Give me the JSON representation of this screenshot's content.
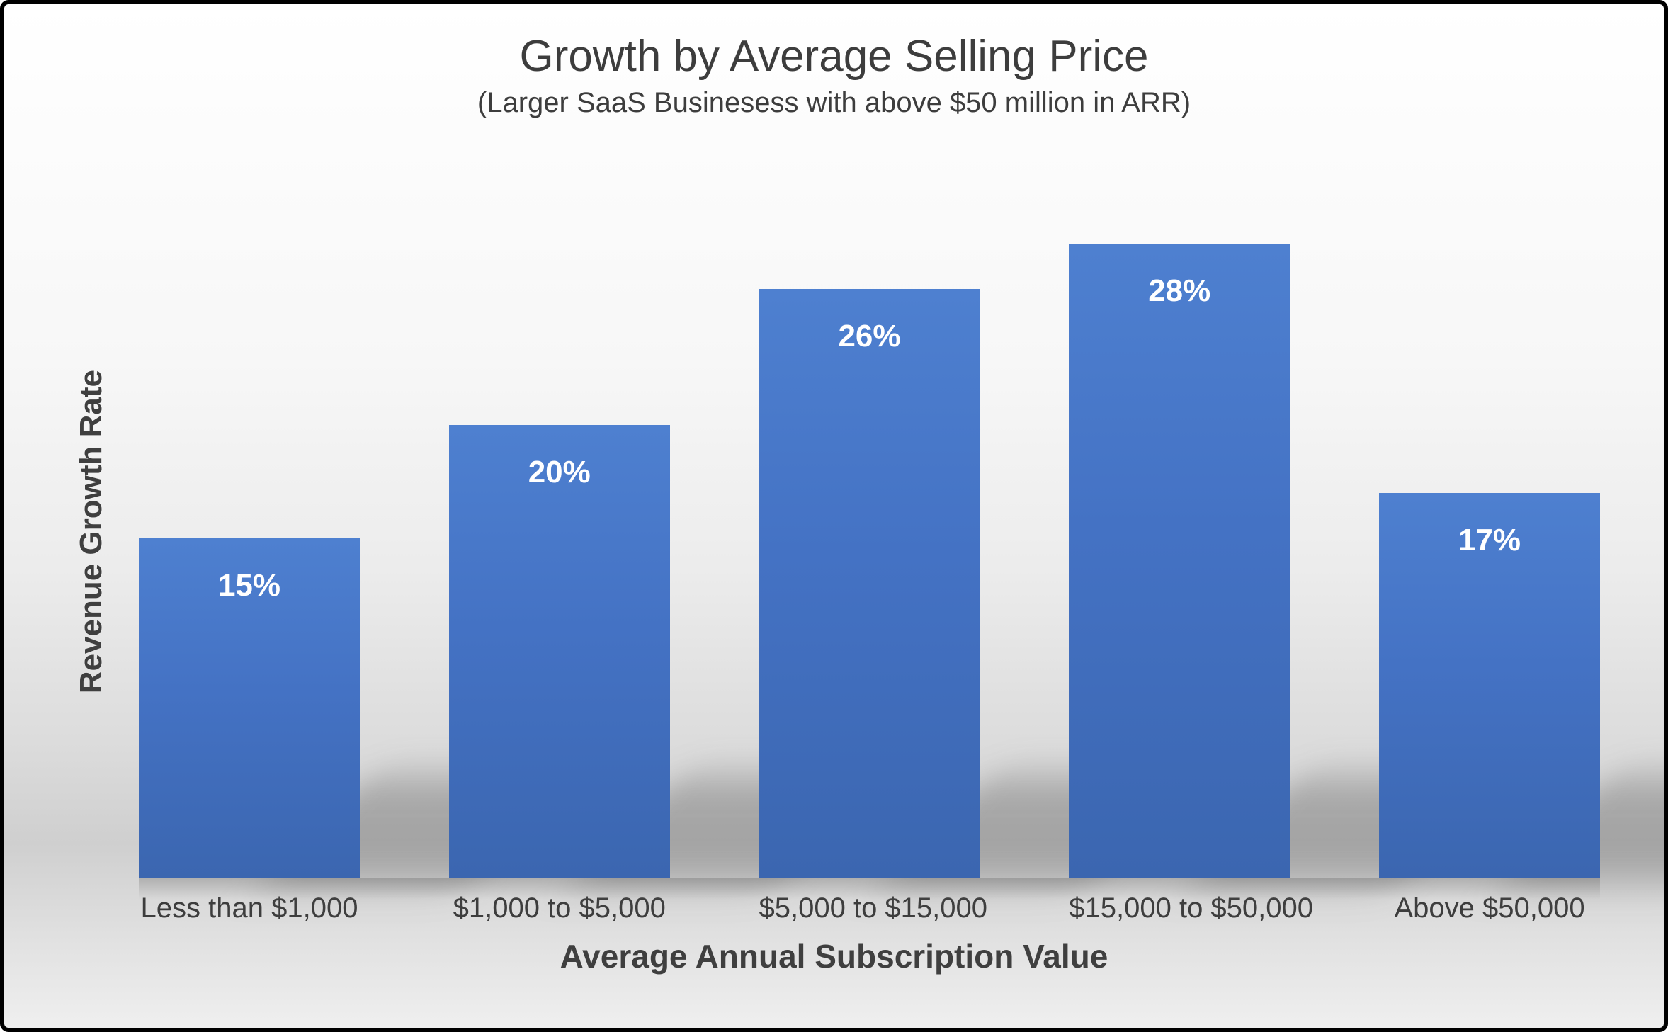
{
  "title": "Growth by Average Selling Price",
  "subtitle": "(Larger SaaS Businesess with above $50 million in ARR)",
  "colors": {
    "bar_top": "#4e80d0",
    "bar_mid": "#4472c4",
    "bar_bottom": "#3b66b0",
    "title_text": "#3d3d3d",
    "data_label_text": "#ffffff"
  },
  "chart_data": {
    "type": "bar",
    "title": "Growth by Average Selling Price",
    "subtitle": "(Larger SaaS Businesess with above $50 million in ARR)",
    "xlabel": "Average Annual Subscription Value",
    "ylabel": "Revenue Growth Rate",
    "categories": [
      "Less than $1,000",
      "$1,000 to $5,000",
      "$5,000 to $15,000",
      "$15,000 to $50,000",
      "Above $50,000"
    ],
    "values": [
      15,
      20,
      26,
      28,
      17
    ],
    "value_labels": [
      "15%",
      "20%",
      "26%",
      "28%",
      "17%"
    ],
    "ylim": [
      0,
      30
    ],
    "grid": false,
    "legend": false,
    "data_label_position": "inside-top",
    "bar_color": "#4472c4"
  }
}
